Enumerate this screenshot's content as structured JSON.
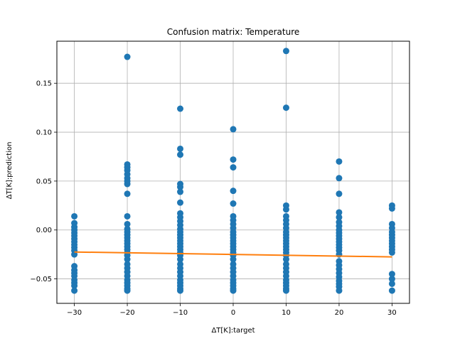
{
  "chart_data": {
    "type": "scatter",
    "title": "Confusion matrix: Temperature",
    "xlabel": "ΔT[K]:target",
    "ylabel": "ΔT[K]:prediction",
    "xlim": [
      -33.3,
      33.3
    ],
    "ylim": [
      -0.075,
      0.193
    ],
    "xticks": [
      -30,
      -20,
      -10,
      0,
      10,
      20,
      30
    ],
    "yticks": [
      -0.05,
      0.0,
      0.05,
      0.1,
      0.15
    ],
    "xtick_labels": [
      "−30",
      "−20",
      "−10",
      "0",
      "10",
      "20",
      "30"
    ],
    "ytick_labels": [
      "−0.05",
      "0.00",
      "0.05",
      "0.10",
      "0.15"
    ],
    "grid": true,
    "colors": {
      "points": "#1f77b4",
      "fit_line": "#ff7f0e",
      "grid": "#b0b0b0"
    },
    "series": [
      {
        "kind": "scatter",
        "points": [
          [
            -30,
            0.014
          ],
          [
            -30,
            0.007
          ],
          [
            -30,
            0.003
          ],
          [
            -30,
            0.0
          ],
          [
            -30,
            -0.003
          ],
          [
            -30,
            -0.006
          ],
          [
            -30,
            -0.009
          ],
          [
            -30,
            -0.012
          ],
          [
            -30,
            -0.015
          ],
          [
            -30,
            -0.018
          ],
          [
            -30,
            -0.021
          ],
          [
            -30,
            -0.025
          ],
          [
            -30,
            -0.037
          ],
          [
            -30,
            -0.041
          ],
          [
            -30,
            -0.044
          ],
          [
            -30,
            -0.047
          ],
          [
            -30,
            -0.051
          ],
          [
            -30,
            -0.054
          ],
          [
            -30,
            -0.057
          ],
          [
            -30,
            -0.062
          ],
          [
            -20,
            0.177
          ],
          [
            -20,
            0.067
          ],
          [
            -20,
            0.064
          ],
          [
            -20,
            0.061
          ],
          [
            -20,
            0.057
          ],
          [
            -20,
            0.053
          ],
          [
            -20,
            0.05
          ],
          [
            -20,
            0.047
          ],
          [
            -20,
            0.037
          ],
          [
            -20,
            0.014
          ],
          [
            -20,
            0.006
          ],
          [
            -20,
            0.001
          ],
          [
            -20,
            -0.002
          ],
          [
            -20,
            -0.005
          ],
          [
            -20,
            -0.008
          ],
          [
            -20,
            -0.011
          ],
          [
            -20,
            -0.014
          ],
          [
            -20,
            -0.017
          ],
          [
            -20,
            -0.02
          ],
          [
            -20,
            -0.023
          ],
          [
            -20,
            -0.026
          ],
          [
            -20,
            -0.03
          ],
          [
            -20,
            -0.035
          ],
          [
            -20,
            -0.039
          ],
          [
            -20,
            -0.043
          ],
          [
            -20,
            -0.047
          ],
          [
            -20,
            -0.051
          ],
          [
            -20,
            -0.054
          ],
          [
            -20,
            -0.057
          ],
          [
            -20,
            -0.06
          ],
          [
            -20,
            -0.062
          ],
          [
            -10,
            0.124
          ],
          [
            -10,
            0.083
          ],
          [
            -10,
            0.077
          ],
          [
            -10,
            0.047
          ],
          [
            -10,
            0.044
          ],
          [
            -10,
            0.039
          ],
          [
            -10,
            0.028
          ],
          [
            -10,
            0.017
          ],
          [
            -10,
            0.013
          ],
          [
            -10,
            0.009
          ],
          [
            -10,
            0.005
          ],
          [
            -10,
            0.001
          ],
          [
            -10,
            -0.002
          ],
          [
            -10,
            -0.005
          ],
          [
            -10,
            -0.008
          ],
          [
            -10,
            -0.011
          ],
          [
            -10,
            -0.014
          ],
          [
            -10,
            -0.017
          ],
          [
            -10,
            -0.02
          ],
          [
            -10,
            -0.023
          ],
          [
            -10,
            -0.026
          ],
          [
            -10,
            -0.03
          ],
          [
            -10,
            -0.035
          ],
          [
            -10,
            -0.039
          ],
          [
            -10,
            -0.043
          ],
          [
            -10,
            -0.047
          ],
          [
            -10,
            -0.051
          ],
          [
            -10,
            -0.054
          ],
          [
            -10,
            -0.057
          ],
          [
            -10,
            -0.06
          ],
          [
            -10,
            -0.062
          ],
          [
            0,
            0.103
          ],
          [
            0,
            0.072
          ],
          [
            0,
            0.064
          ],
          [
            0,
            0.04
          ],
          [
            0,
            0.027
          ],
          [
            0,
            0.014
          ],
          [
            0,
            0.01
          ],
          [
            0,
            0.006
          ],
          [
            0,
            0.002
          ],
          [
            0,
            -0.002
          ],
          [
            0,
            -0.005
          ],
          [
            0,
            -0.008
          ],
          [
            0,
            -0.011
          ],
          [
            0,
            -0.014
          ],
          [
            0,
            -0.017
          ],
          [
            0,
            -0.02
          ],
          [
            0,
            -0.023
          ],
          [
            0,
            -0.026
          ],
          [
            0,
            -0.03
          ],
          [
            0,
            -0.035
          ],
          [
            0,
            -0.039
          ],
          [
            0,
            -0.043
          ],
          [
            0,
            -0.047
          ],
          [
            0,
            -0.051
          ],
          [
            0,
            -0.054
          ],
          [
            0,
            -0.057
          ],
          [
            0,
            -0.06
          ],
          [
            0,
            -0.062
          ],
          [
            10,
            0.183
          ],
          [
            10,
            0.125
          ],
          [
            10,
            0.025
          ],
          [
            10,
            0.021
          ],
          [
            10,
            0.014
          ],
          [
            10,
            0.01
          ],
          [
            10,
            0.006
          ],
          [
            10,
            0.002
          ],
          [
            10,
            -0.002
          ],
          [
            10,
            -0.005
          ],
          [
            10,
            -0.008
          ],
          [
            10,
            -0.011
          ],
          [
            10,
            -0.014
          ],
          [
            10,
            -0.017
          ],
          [
            10,
            -0.02
          ],
          [
            10,
            -0.023
          ],
          [
            10,
            -0.026
          ],
          [
            10,
            -0.03
          ],
          [
            10,
            -0.035
          ],
          [
            10,
            -0.039
          ],
          [
            10,
            -0.043
          ],
          [
            10,
            -0.047
          ],
          [
            10,
            -0.051
          ],
          [
            10,
            -0.054
          ],
          [
            10,
            -0.057
          ],
          [
            10,
            -0.06
          ],
          [
            10,
            -0.062
          ],
          [
            20,
            0.07
          ],
          [
            20,
            0.053
          ],
          [
            20,
            0.037
          ],
          [
            20,
            0.018
          ],
          [
            20,
            0.013
          ],
          [
            20,
            0.008
          ],
          [
            20,
            0.004
          ],
          [
            20,
            0.0
          ],
          [
            20,
            -0.003
          ],
          [
            20,
            -0.006
          ],
          [
            20,
            -0.009
          ],
          [
            20,
            -0.012
          ],
          [
            20,
            -0.015
          ],
          [
            20,
            -0.018
          ],
          [
            20,
            -0.021
          ],
          [
            20,
            -0.025
          ],
          [
            20,
            -0.032
          ],
          [
            20,
            -0.036
          ],
          [
            20,
            -0.04
          ],
          [
            20,
            -0.044
          ],
          [
            20,
            -0.048
          ],
          [
            20,
            -0.052
          ],
          [
            20,
            -0.055
          ],
          [
            20,
            -0.058
          ],
          [
            20,
            -0.062
          ],
          [
            30,
            0.025
          ],
          [
            30,
            0.022
          ],
          [
            30,
            0.006
          ],
          [
            30,
            0.002
          ],
          [
            30,
            -0.002
          ],
          [
            30,
            -0.005
          ],
          [
            30,
            -0.008
          ],
          [
            30,
            -0.011
          ],
          [
            30,
            -0.014
          ],
          [
            30,
            -0.017
          ],
          [
            30,
            -0.02
          ],
          [
            30,
            -0.023
          ],
          [
            30,
            -0.045
          ],
          [
            30,
            -0.05
          ],
          [
            30,
            -0.055
          ],
          [
            30,
            -0.062
          ]
        ]
      },
      {
        "kind": "line",
        "points": [
          [
            -30,
            -0.0225
          ],
          [
            30,
            -0.0275
          ]
        ]
      }
    ]
  }
}
